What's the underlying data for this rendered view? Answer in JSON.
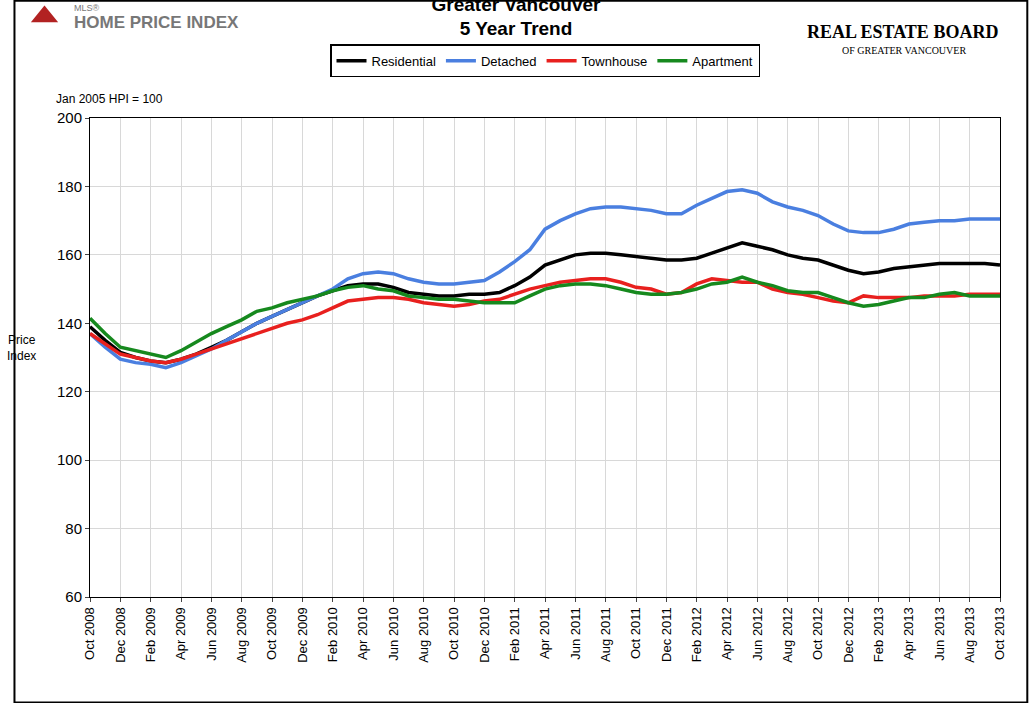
{
  "chart_data": {
    "type": "line",
    "title": "Greater Vancouver",
    "subtitle": "5 Year Trend",
    "y_label": "Price Index",
    "note": "Jan 2005 HPI = 100",
    "branding": {
      "left_small": "MLS®",
      "left": "HOME PRICE INDEX",
      "right": "REAL ESTATE BOARD",
      "right_sub": "OF GREATER VANCOUVER"
    },
    "categories": [
      "Oct 2008",
      null,
      "Dec 2008",
      null,
      "Feb 2009",
      null,
      "Apr 2009",
      null,
      "Jun 2009",
      null,
      "Aug 2009",
      null,
      "Oct 2009",
      null,
      "Dec 2009",
      null,
      "Feb 2010",
      null,
      "Apr 2010",
      null,
      "Jun 2010",
      null,
      "Aug 2010",
      null,
      "Oct 2010",
      null,
      "Dec 2010",
      null,
      "Feb 2011",
      null,
      "Apr 2011",
      null,
      "Jun 2011",
      null,
      "Aug 2011",
      null,
      "Oct 2011",
      null,
      "Dec 2011",
      null,
      "Feb 2012",
      null,
      "Apr 2012",
      null,
      "Jun 2012",
      null,
      "Aug 2012",
      null,
      "Oct 2012",
      null,
      "Dec 2012",
      null,
      "Feb 2013",
      null,
      "Apr 2013",
      null,
      "Jun 2013",
      null,
      "Aug 2013",
      null,
      "Oct 2013"
    ],
    "series": [
      {
        "name": "Residential",
        "color": "#000000",
        "values": [
          139,
          135,
          131.5,
          130,
          129,
          128.5,
          129.5,
          131,
          133,
          135,
          137.5,
          140,
          142,
          144,
          146,
          148,
          149.5,
          151,
          151.5,
          151.5,
          150.5,
          149,
          148.5,
          148,
          148,
          148.5,
          148.5,
          149,
          151,
          153.5,
          157,
          158.5,
          160,
          160.5,
          160.5,
          160,
          159.5,
          159,
          158.5,
          158.5,
          159,
          160.5,
          162,
          163.5,
          162.5,
          161.5,
          160,
          159,
          158.5,
          157,
          155.5,
          154.5,
          155,
          156,
          156.5,
          157,
          157.5,
          157.5,
          157.5,
          157.5,
          157
        ]
      },
      {
        "name": "Detached",
        "color": "#4a7fe0",
        "values": [
          137,
          133,
          129.5,
          128.5,
          128,
          127,
          128.5,
          130.5,
          132.5,
          135,
          137.5,
          140,
          142,
          144,
          146,
          148,
          150,
          153,
          154.5,
          155,
          154.5,
          153,
          152,
          151.5,
          151.5,
          152,
          152.5,
          155,
          158,
          161.5,
          167.5,
          170,
          172,
          173.5,
          174,
          174,
          173.5,
          173,
          172,
          172,
          174.5,
          176.5,
          178.5,
          179,
          178,
          175.5,
          174,
          173,
          171.5,
          169,
          167,
          166.5,
          166.5,
          167.5,
          169,
          169.5,
          170,
          170,
          170.5,
          170.5,
          170.5
        ]
      },
      {
        "name": "Townhouse",
        "color": "#e8201e",
        "values": [
          137,
          134,
          131,
          130,
          129,
          128.5,
          129.5,
          131,
          132.5,
          134,
          135.5,
          137,
          138.5,
          140,
          141,
          142.5,
          144.5,
          146.5,
          147,
          147.5,
          147.5,
          147,
          146,
          145.5,
          145,
          145.5,
          146.5,
          147,
          148.5,
          150,
          151,
          152,
          152.5,
          153,
          153,
          152,
          150.5,
          150,
          148.5,
          149,
          151.5,
          153,
          152.5,
          152,
          152,
          150,
          149,
          148.5,
          147.5,
          146.5,
          146,
          148,
          147.5,
          147.5,
          147.5,
          148,
          148,
          148,
          148.5,
          148.5,
          148.5
        ]
      },
      {
        "name": "Apartment",
        "color": "#16891e",
        "values": [
          141.5,
          137,
          133,
          132,
          131,
          130,
          132,
          134.5,
          137,
          139,
          141,
          143.5,
          144.5,
          146,
          147,
          148,
          149.5,
          150.5,
          151,
          150,
          149.5,
          148,
          147.5,
          147,
          147,
          146.5,
          146,
          146,
          146,
          148,
          150,
          151,
          151.5,
          151.5,
          151,
          150,
          149,
          148.5,
          148.5,
          149,
          150,
          151.5,
          152,
          153.5,
          152,
          151,
          149.5,
          149,
          149,
          147.5,
          146,
          145,
          145.5,
          146.5,
          147.5,
          147.5,
          148.5,
          149,
          148,
          148,
          148
        ]
      }
    ],
    "ylim": [
      60,
      200
    ],
    "yticks": [
      60,
      80,
      100,
      120,
      140,
      160,
      180,
      200
    ],
    "grid": true,
    "legend": "top"
  }
}
